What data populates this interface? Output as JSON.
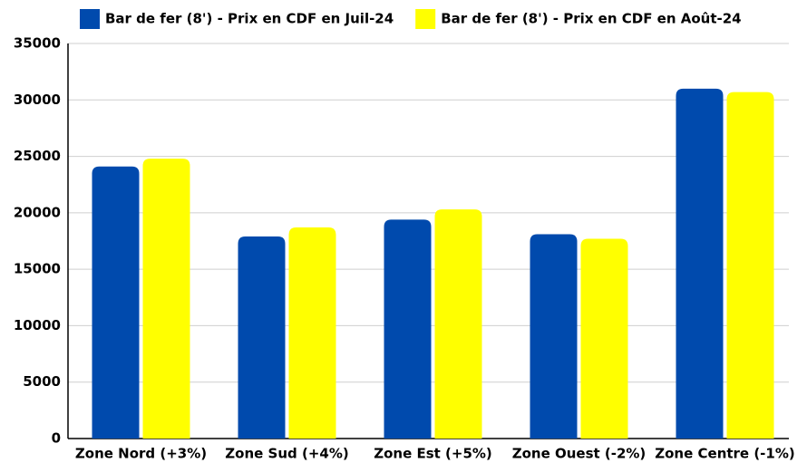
{
  "chart_data": {
    "type": "bar",
    "categories": [
      "Zone Nord (+3%)",
      "Zone Sud (+4%)",
      "Zone Est (+5%)",
      "Zone Ouest (-2%)",
      "Zone Centre (-1%)"
    ],
    "series": [
      {
        "name": "Bar de fer (8') - Prix en CDF en Juil-24",
        "color": "#004aad",
        "values": [
          24100,
          17900,
          19400,
          18100,
          31000
        ]
      },
      {
        "name": "Bar de fer (8') - Prix en CDF en Août-24",
        "color": "#ffff00",
        "values": [
          24800,
          18700,
          20300,
          17700,
          30700
        ]
      }
    ],
    "ylim": [
      0,
      35000
    ],
    "yticks": [
      0,
      5000,
      10000,
      15000,
      20000,
      25000,
      30000,
      35000
    ],
    "grid": true,
    "legend": "top"
  }
}
